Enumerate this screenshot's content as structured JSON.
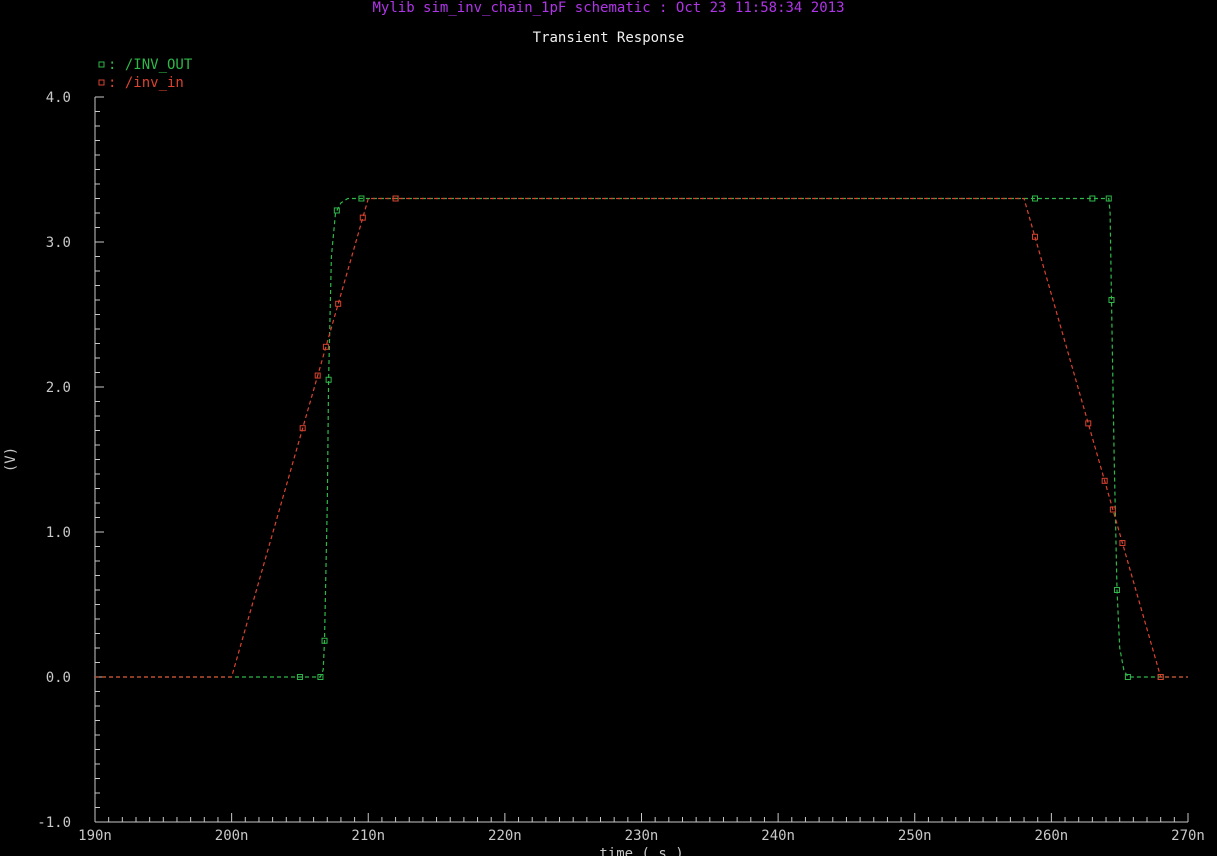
{
  "window": {
    "header": "Mylib sim_inv_chain_1pF schematic : Oct 23 11:58:34 2013",
    "header_color": "#b035e8"
  },
  "chart_data": {
    "type": "line",
    "title": "Transient Response",
    "xlabel": "time ( s )",
    "ylabel": "(V)",
    "xlim": [
      190,
      270
    ],
    "ylim": [
      -1.0,
      4.0
    ],
    "x_unit_suffix": "n",
    "x_ticks": [
      190,
      200,
      210,
      220,
      230,
      240,
      250,
      260,
      270
    ],
    "x_tick_labels": [
      "190n",
      "200n",
      "210n",
      "220n",
      "230n",
      "240n",
      "250n",
      "260n",
      "270n"
    ],
    "y_ticks": [
      -1.0,
      0.0,
      1.0,
      2.0,
      3.0,
      4.0
    ],
    "y_tick_labels": [
      "-1.0",
      "0.0",
      "1.0",
      "2.0",
      "3.0",
      "4.0"
    ],
    "grid": false,
    "legend_position": "top-left",
    "series": [
      {
        "name": "/INV_OUT",
        "legend_label": ": /INV_OUT",
        "color": "#2fb84a",
        "dash": "4,3",
        "marker": "square",
        "points": [
          [
            190,
            0.0
          ],
          [
            205,
            0.0
          ],
          [
            206.5,
            0.0
          ],
          [
            206.7,
            0.05
          ],
          [
            206.8,
            0.25
          ],
          [
            207.0,
            1.2
          ],
          [
            207.1,
            2.05
          ],
          [
            207.3,
            2.9
          ],
          [
            207.6,
            3.2
          ],
          [
            208,
            3.27
          ],
          [
            208.5,
            3.3
          ],
          [
            209.5,
            3.3
          ],
          [
            212,
            3.3
          ],
          [
            258.8,
            3.3
          ],
          [
            263,
            3.3
          ],
          [
            264.2,
            3.3
          ],
          [
            264.3,
            3.2
          ],
          [
            264.4,
            2.6
          ],
          [
            264.6,
            1.5
          ],
          [
            264.8,
            0.6
          ],
          [
            265.0,
            0.2
          ],
          [
            265.3,
            0.05
          ],
          [
            265.6,
            0.0
          ],
          [
            268,
            0.0
          ],
          [
            270,
            0.0
          ]
        ],
        "markers_at": [
          205,
          206.5,
          206.8,
          207.1,
          207.7,
          209.5,
          212,
          258.8,
          263,
          264.2,
          264.4,
          264.8,
          265.6,
          268
        ]
      },
      {
        "name": "/inv_in",
        "legend_label": ": /inv_in",
        "color": "#d9432f",
        "dash": "4,3",
        "marker": "square",
        "points": [
          [
            190,
            0.0
          ],
          [
            200,
            0.0
          ],
          [
            210,
            3.3
          ],
          [
            258,
            3.3
          ],
          [
            268,
            0.0
          ],
          [
            270,
            0.0
          ]
        ],
        "markers_at": [
          205.2,
          206.3,
          206.9,
          207.8,
          209.6,
          212,
          258.8,
          262.7,
          263.9,
          264.5,
          265.2,
          268
        ]
      }
    ]
  }
}
